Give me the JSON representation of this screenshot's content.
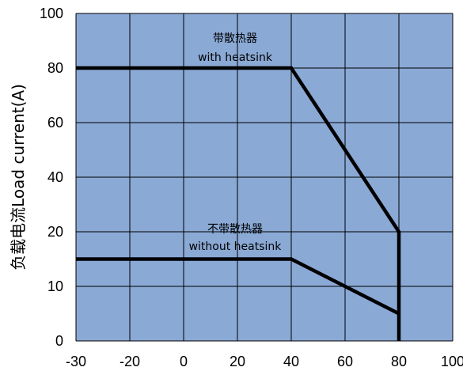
{
  "chart_data": {
    "type": "line",
    "title": "",
    "xlabel": "",
    "ylabel": "负载电流Load current(A)",
    "x_ticks": [
      "-30",
      "-20",
      "0",
      "20",
      "40",
      "60",
      "80",
      "100"
    ],
    "y_ticks": [
      "100",
      "80",
      "60",
      "40",
      "20",
      "10",
      "0"
    ],
    "grid": true,
    "legend": "none",
    "colors": {
      "plot_background": "#8aa9d5",
      "grid": "#000000",
      "line": "#000000"
    },
    "series": [
      {
        "name": "带散热器 with heatsink",
        "points": [
          [
            -30,
            80
          ],
          [
            40,
            80
          ],
          [
            80,
            20
          ],
          [
            80,
            0
          ]
        ]
      },
      {
        "name": "不带散热器 without heatsink",
        "points": [
          [
            -30,
            15
          ],
          [
            40,
            15
          ],
          [
            80,
            5
          ]
        ]
      }
    ],
    "annotations": [
      {
        "line1": "带散热器",
        "line2": "with heatsink"
      },
      {
        "line1": "不带散热器",
        "line2": "without heatsink"
      }
    ]
  }
}
